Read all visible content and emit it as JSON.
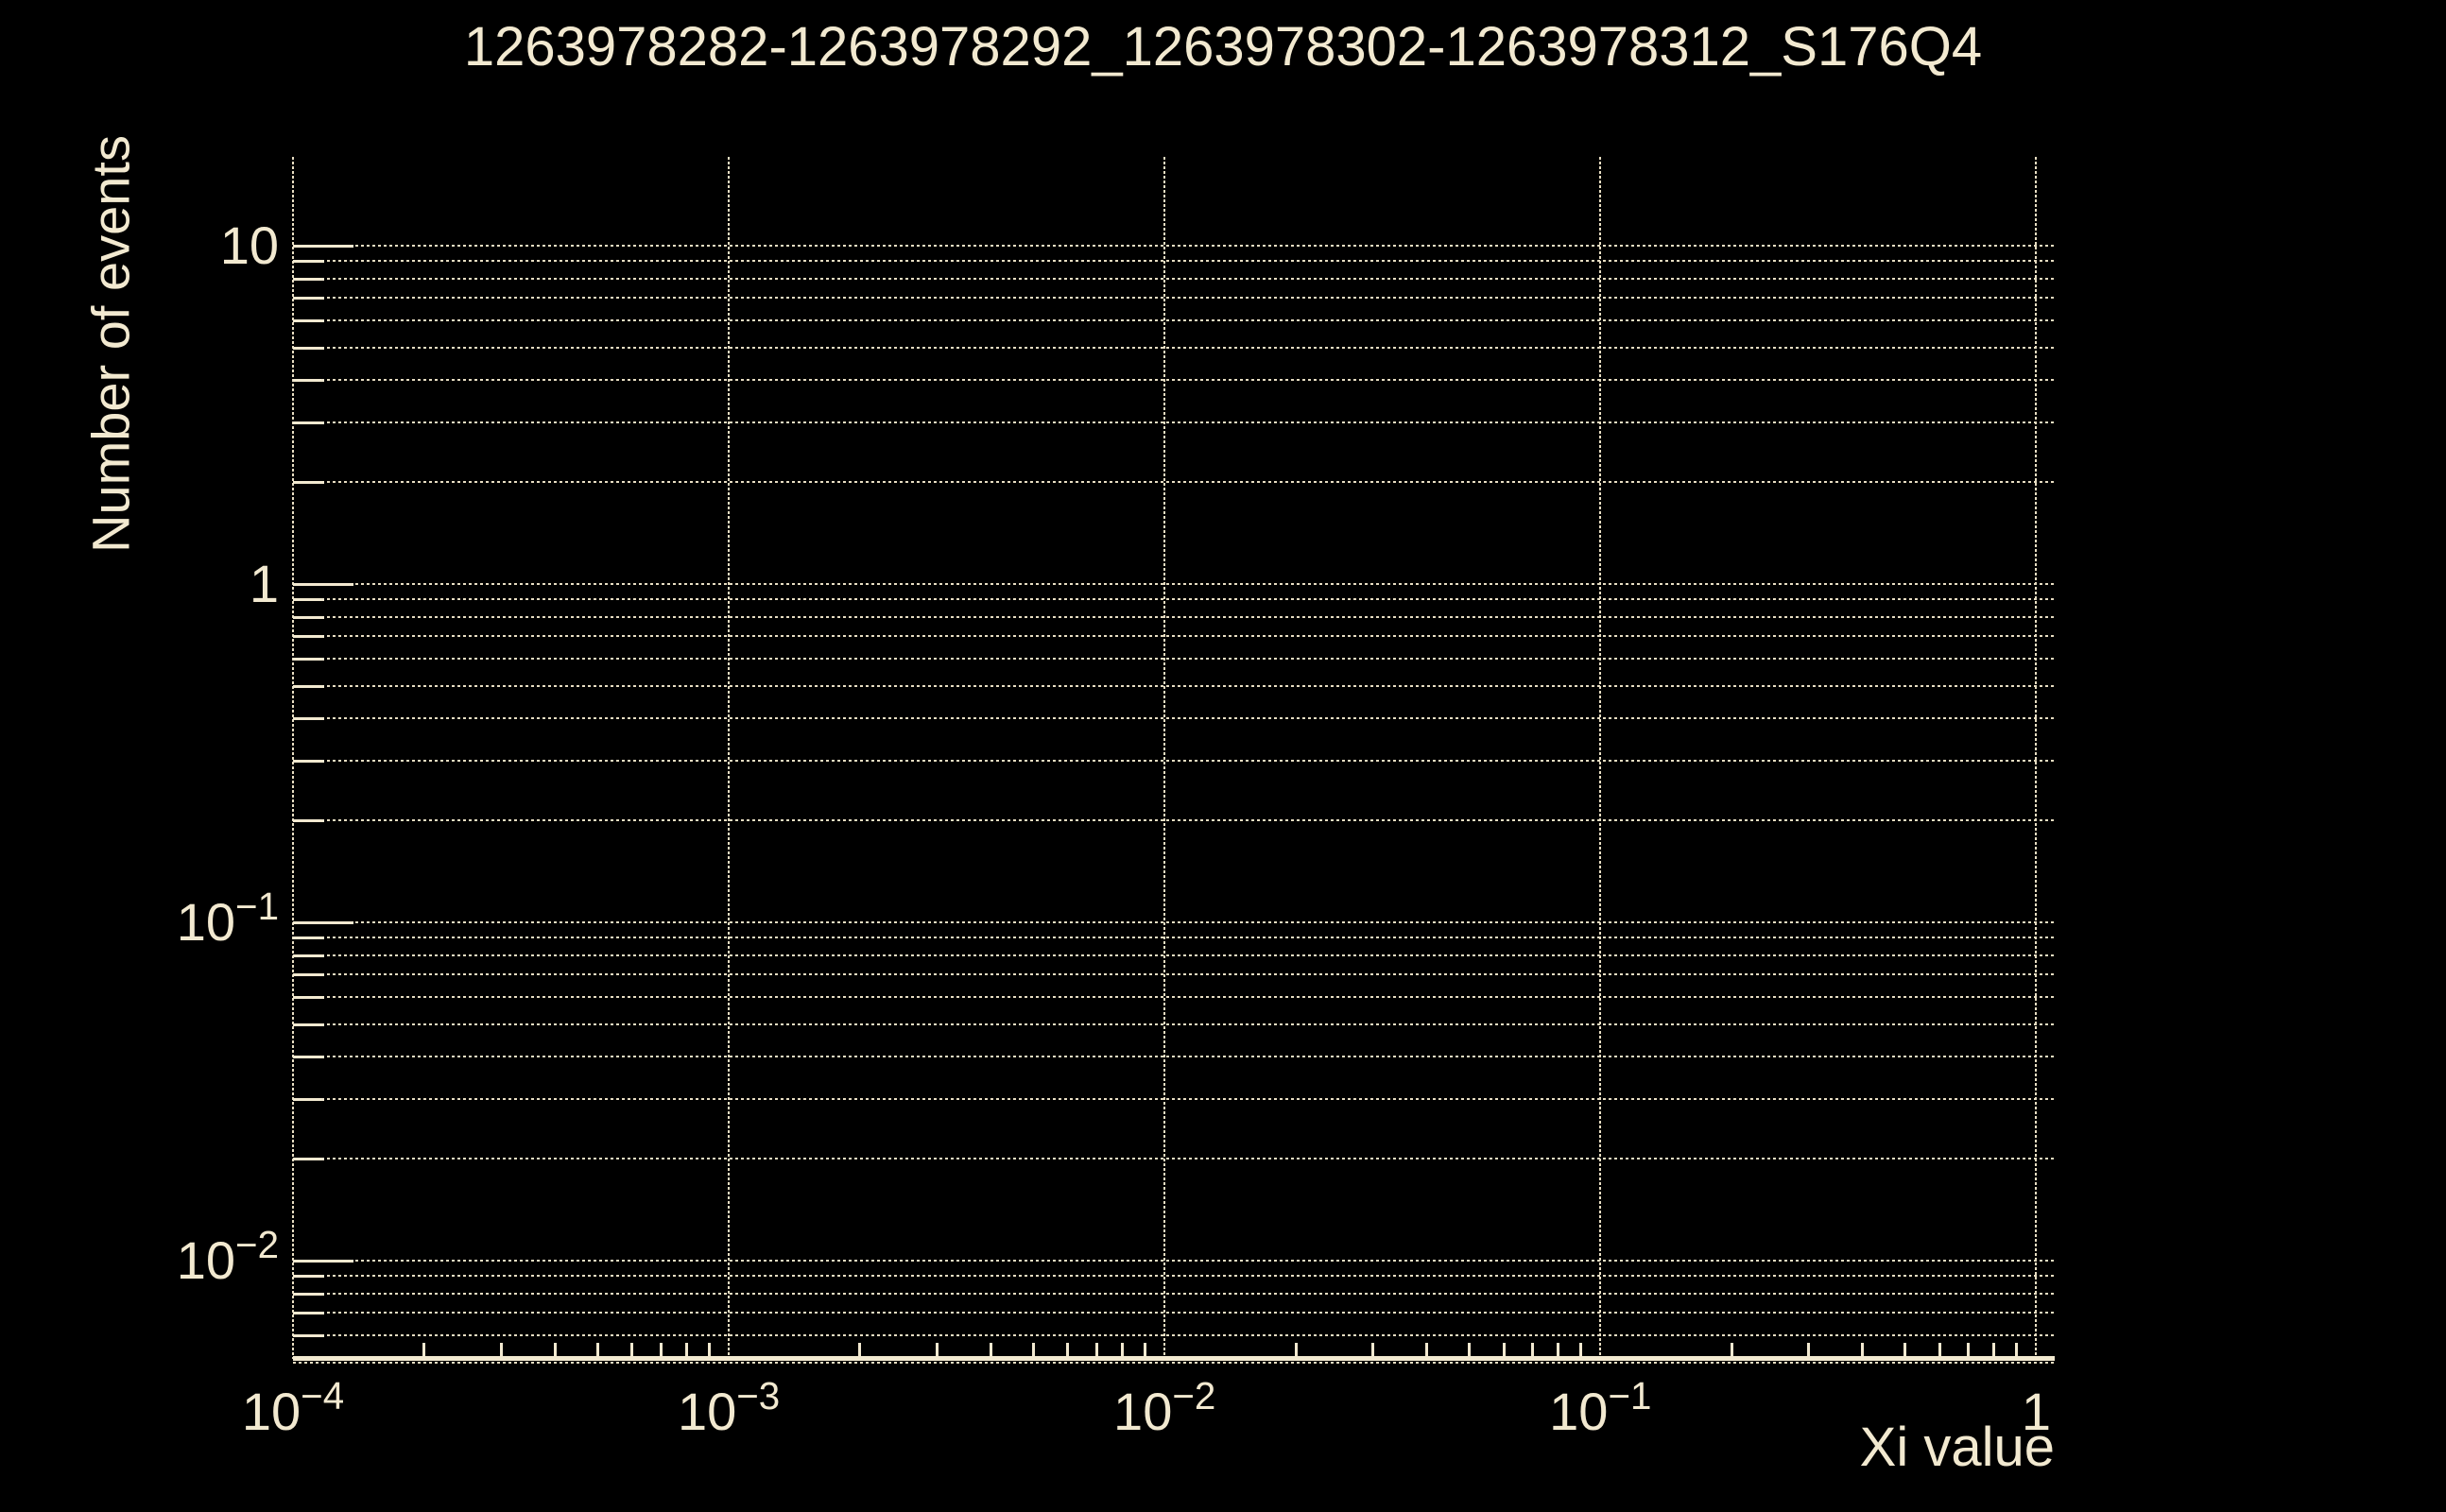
{
  "page": {
    "background": "#000000"
  },
  "chart_data": {
    "type": "line",
    "title": "1263978282-1263978292_1263978302-1263978312_S176Q4",
    "xlabel": "Xi value",
    "ylabel": "Number of events",
    "x_scale": "log",
    "y_scale": "log",
    "xlim": [
      0.0001,
      1.1
    ],
    "ylim": [
      0.005,
      18.3
    ],
    "grid": true,
    "legend": false,
    "series": [],
    "note": "Empty ROOT-style log-log histogram frame in cream on black: dotted gridlines at every logarithmic subdivision, solid inward tick marks on left and bottom axes, solid bottom axis line, no data points drawn.",
    "x_ticks": [
      {
        "value": 0.0001,
        "base": "10",
        "exp": "−4"
      },
      {
        "value": 0.001,
        "base": "10",
        "exp": "−3"
      },
      {
        "value": 0.01,
        "base": "10",
        "exp": "−2"
      },
      {
        "value": 0.1,
        "base": "10",
        "exp": "−1"
      },
      {
        "value": 1,
        "base": "1",
        "exp": ""
      }
    ],
    "y_ticks": [
      {
        "value": 10,
        "base": "10",
        "exp": ""
      },
      {
        "value": 1,
        "base": "1",
        "exp": ""
      },
      {
        "value": 0.1,
        "base": "10",
        "exp": "−1"
      },
      {
        "value": 0.01,
        "base": "10",
        "exp": "−2"
      }
    ],
    "colors": {
      "background": "#000000",
      "foreground": "#f2e9d0",
      "grid": "#e7ddc2"
    }
  }
}
